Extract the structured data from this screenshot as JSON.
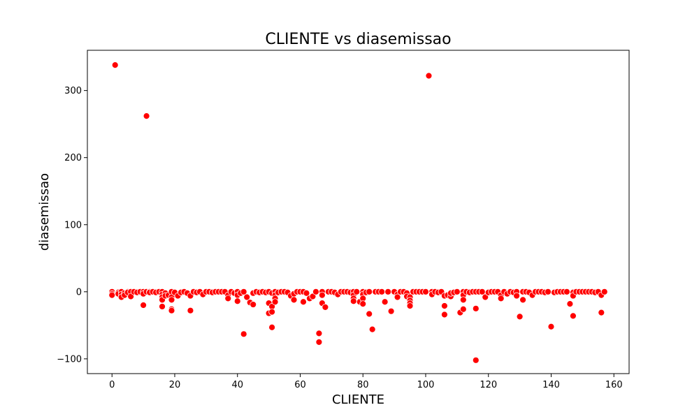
{
  "chart_data": {
    "type": "scatter",
    "title": "CLIENTE vs diasemissao",
    "xlabel": "CLIENTE",
    "ylabel": "diasemissao",
    "xlim": [
      -7.85,
      164.85
    ],
    "ylim": [
      -122,
      360
    ],
    "xticks": [
      0,
      20,
      40,
      60,
      80,
      100,
      120,
      140,
      160
    ],
    "yticks": [
      -100,
      0,
      100,
      200,
      300
    ],
    "ytick_labels": [
      "−100",
      "0",
      "100",
      "200",
      "300"
    ],
    "marker_color": "#ff0000",
    "marker_edge_color": "#ffffff",
    "grid": false,
    "legend": "none",
    "points": [
      [
        0,
        0
      ],
      [
        0,
        -3
      ],
      [
        0,
        -5
      ],
      [
        1,
        338
      ],
      [
        2,
        -1
      ],
      [
        2,
        -3
      ],
      [
        3,
        0
      ],
      [
        3,
        -4
      ],
      [
        3,
        -8
      ],
      [
        4,
        -2
      ],
      [
        4,
        -5
      ],
      [
        5,
        0
      ],
      [
        5,
        -1
      ],
      [
        6,
        0
      ],
      [
        6,
        -7
      ],
      [
        7,
        0
      ],
      [
        8,
        -1
      ],
      [
        9,
        0
      ],
      [
        10,
        0
      ],
      [
        10,
        -3
      ],
      [
        10,
        -20
      ],
      [
        11,
        262
      ],
      [
        11,
        0
      ],
      [
        12,
        0
      ],
      [
        12,
        -1
      ],
      [
        13,
        0
      ],
      [
        14,
        -1
      ],
      [
        15,
        0
      ],
      [
        16,
        0
      ],
      [
        16,
        -4
      ],
      [
        16,
        -8
      ],
      [
        16,
        -12
      ],
      [
        16,
        -22
      ],
      [
        17,
        -2
      ],
      [
        17,
        -6
      ],
      [
        18,
        -5
      ],
      [
        19,
        0
      ],
      [
        19,
        -8
      ],
      [
        19,
        -12
      ],
      [
        19,
        -26
      ],
      [
        19,
        -28
      ],
      [
        20,
        -1
      ],
      [
        21,
        -6
      ],
      [
        22,
        -1
      ],
      [
        23,
        0
      ],
      [
        24,
        -2
      ],
      [
        25,
        -6
      ],
      [
        25,
        -28
      ],
      [
        26,
        0
      ],
      [
        27,
        -1
      ],
      [
        28,
        0
      ],
      [
        29,
        -4
      ],
      [
        30,
        0
      ],
      [
        31,
        0
      ],
      [
        32,
        -1
      ],
      [
        33,
        0
      ],
      [
        34,
        0
      ],
      [
        35,
        0
      ],
      [
        36,
        0
      ],
      [
        37,
        -5
      ],
      [
        37,
        -10
      ],
      [
        38,
        0
      ],
      [
        39,
        -2
      ],
      [
        40,
        0
      ],
      [
        40,
        -5
      ],
      [
        40,
        -14
      ],
      [
        41,
        -2
      ],
      [
        42,
        0
      ],
      [
        42,
        -63
      ],
      [
        43,
        -8
      ],
      [
        44,
        -16
      ],
      [
        45,
        -2
      ],
      [
        45,
        -19
      ],
      [
        46,
        0
      ],
      [
        47,
        -1
      ],
      [
        48,
        0
      ],
      [
        49,
        -1
      ],
      [
        50,
        0
      ],
      [
        50,
        -17
      ],
      [
        50,
        -32
      ],
      [
        51,
        -2
      ],
      [
        51,
        -22
      ],
      [
        51,
        -30
      ],
      [
        51,
        -53
      ],
      [
        52,
        0
      ],
      [
        52,
        -5
      ],
      [
        52,
        -10
      ],
      [
        52,
        -15
      ],
      [
        53,
        -1
      ],
      [
        54,
        0
      ],
      [
        55,
        0
      ],
      [
        56,
        -1
      ],
      [
        57,
        -6
      ],
      [
        58,
        -3
      ],
      [
        58,
        -12
      ],
      [
        59,
        0
      ],
      [
        60,
        0
      ],
      [
        61,
        0
      ],
      [
        61,
        -15
      ],
      [
        62,
        -2
      ],
      [
        63,
        -10
      ],
      [
        64,
        -7
      ],
      [
        65,
        0
      ],
      [
        66,
        -62
      ],
      [
        66,
        -75
      ],
      [
        67,
        0
      ],
      [
        67,
        -5
      ],
      [
        67,
        -17
      ],
      [
        68,
        -23
      ],
      [
        69,
        0
      ],
      [
        70,
        0
      ],
      [
        71,
        -1
      ],
      [
        72,
        -4
      ],
      [
        73,
        0
      ],
      [
        74,
        0
      ],
      [
        75,
        0
      ],
      [
        76,
        -1
      ],
      [
        77,
        0
      ],
      [
        77,
        -5
      ],
      [
        77,
        -10
      ],
      [
        77,
        -14
      ],
      [
        78,
        0
      ],
      [
        79,
        -15
      ],
      [
        80,
        0
      ],
      [
        80,
        -4
      ],
      [
        80,
        -10
      ],
      [
        80,
        -18
      ],
      [
        81,
        -1
      ],
      [
        82,
        0
      ],
      [
        82,
        -33
      ],
      [
        83,
        -56
      ],
      [
        84,
        0
      ],
      [
        85,
        0
      ],
      [
        86,
        0
      ],
      [
        87,
        -15
      ],
      [
        88,
        0
      ],
      [
        89,
        -29
      ],
      [
        90,
        0
      ],
      [
        91,
        -4
      ],
      [
        91,
        -8
      ],
      [
        92,
        0
      ],
      [
        93,
        0
      ],
      [
        94,
        -2
      ],
      [
        94,
        -7
      ],
      [
        95,
        -8
      ],
      [
        95,
        -13
      ],
      [
        95,
        -17
      ],
      [
        95,
        -21
      ],
      [
        96,
        0
      ],
      [
        97,
        0
      ],
      [
        98,
        0
      ],
      [
        99,
        0
      ],
      [
        100,
        0
      ],
      [
        101,
        322
      ],
      [
        102,
        0
      ],
      [
        102,
        -4
      ],
      [
        103,
        0
      ],
      [
        104,
        -1
      ],
      [
        105,
        0
      ],
      [
        106,
        -6
      ],
      [
        106,
        -21
      ],
      [
        106,
        -34
      ],
      [
        107,
        -5
      ],
      [
        108,
        -7
      ],
      [
        108,
        -2
      ],
      [
        109,
        -1
      ],
      [
        110,
        0
      ],
      [
        111,
        -31
      ],
      [
        112,
        0
      ],
      [
        112,
        -5
      ],
      [
        112,
        -12
      ],
      [
        112,
        -26
      ],
      [
        113,
        0
      ],
      [
        114,
        -1
      ],
      [
        115,
        0
      ],
      [
        116,
        0
      ],
      [
        116,
        -25
      ],
      [
        116,
        -102
      ],
      [
        117,
        0
      ],
      [
        118,
        0
      ],
      [
        119,
        -8
      ],
      [
        120,
        -1
      ],
      [
        121,
        0
      ],
      [
        122,
        0
      ],
      [
        123,
        0
      ],
      [
        124,
        -5
      ],
      [
        124,
        -10
      ],
      [
        125,
        0
      ],
      [
        126,
        -3
      ],
      [
        127,
        0
      ],
      [
        128,
        -1
      ],
      [
        129,
        0
      ],
      [
        129,
        -6
      ],
      [
        130,
        -37
      ],
      [
        131,
        0
      ],
      [
        131,
        -12
      ],
      [
        132,
        0
      ],
      [
        133,
        -1
      ],
      [
        134,
        -5
      ],
      [
        135,
        0
      ],
      [
        136,
        0
      ],
      [
        137,
        0
      ],
      [
        138,
        -1
      ],
      [
        139,
        0
      ],
      [
        140,
        -52
      ],
      [
        141,
        -1
      ],
      [
        142,
        0
      ],
      [
        143,
        0
      ],
      [
        144,
        0
      ],
      [
        145,
        0
      ],
      [
        146,
        -18
      ],
      [
        147,
        -1
      ],
      [
        147,
        -6
      ],
      [
        147,
        -36
      ],
      [
        148,
        0
      ],
      [
        149,
        0
      ],
      [
        150,
        0
      ],
      [
        151,
        0
      ],
      [
        152,
        0
      ],
      [
        153,
        0
      ],
      [
        154,
        -1
      ],
      [
        155,
        0
      ],
      [
        156,
        -5
      ],
      [
        156,
        -31
      ],
      [
        157,
        0
      ]
    ]
  }
}
